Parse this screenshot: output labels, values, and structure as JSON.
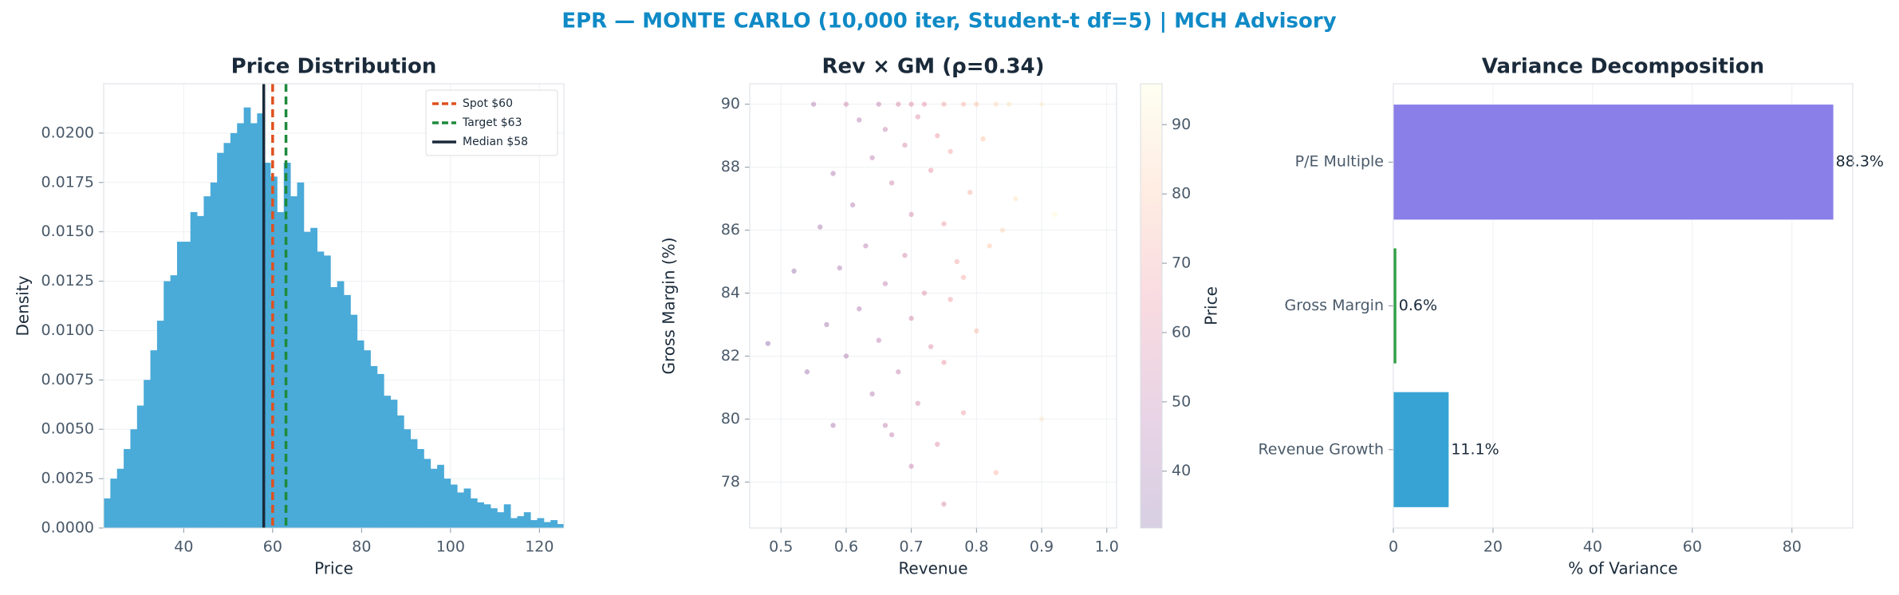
{
  "title": "EPR — MONTE CARLO (10,000 iter, Student-t df=5) | MCH Advisory",
  "chart_data": [
    {
      "type": "histogram",
      "title": "Price Distribution",
      "xlabel": "Price",
      "ylabel": "Density",
      "color": "#4aaad8",
      "bins": [
        22,
        23.5,
        25,
        26.5,
        28,
        29.5,
        31,
        32.5,
        34,
        35.5,
        37,
        38.5,
        40,
        41.5,
        43,
        44.5,
        46,
        47.5,
        49,
        50.5,
        52,
        53.5,
        55,
        56.5,
        58,
        59.5,
        61,
        62.5,
        64,
        65.5,
        67,
        68.5,
        70,
        71.5,
        73,
        74.5,
        76,
        77.5,
        79,
        80.5,
        82,
        83.5,
        85,
        86.5,
        88,
        89.5,
        91,
        92.5,
        94,
        95.5,
        97,
        98.5,
        100,
        101.5,
        103,
        104.5,
        106,
        107.5,
        109,
        110.5,
        112,
        113.5,
        115,
        116.5,
        118,
        119.5,
        121,
        122.5,
        124,
        125.5
      ],
      "values": [
        0.0015,
        0.0025,
        0.003,
        0.004,
        0.005,
        0.0062,
        0.0075,
        0.009,
        0.0105,
        0.0125,
        0.0128,
        0.0145,
        0.0145,
        0.016,
        0.0158,
        0.0168,
        0.0175,
        0.019,
        0.0195,
        0.02,
        0.0205,
        0.0213,
        0.0205,
        0.021,
        0.0185,
        0.0178,
        0.016,
        0.0185,
        0.0168,
        0.0175,
        0.015,
        0.0152,
        0.014,
        0.0138,
        0.0122,
        0.0125,
        0.0118,
        0.0108,
        0.0095,
        0.009,
        0.0082,
        0.0078,
        0.0067,
        0.0065,
        0.0057,
        0.005,
        0.0045,
        0.004,
        0.0035,
        0.003,
        0.0032,
        0.0025,
        0.0022,
        0.0018,
        0.002,
        0.0015,
        0.0013,
        0.0012,
        0.001,
        0.0008,
        0.0012,
        0.0005,
        0.0006,
        0.0008,
        0.0004,
        0.0005,
        0.0003,
        0.0004,
        0.0002
      ],
      "vlines": [
        {
          "value": 60,
          "label": "Spot $60",
          "color": "#e0501e",
          "dashed": true
        },
        {
          "value": 63,
          "label": "Target $63",
          "color": "#1e8a3c",
          "dashed": true
        },
        {
          "value": 58,
          "label": "Median $58",
          "color": "#1a2a3a",
          "dashed": false
        }
      ],
      "legend": "upper right",
      "xlim": [
        22,
        125.5
      ],
      "xticks": [
        40,
        60,
        80,
        100,
        120
      ],
      "ylim": [
        0,
        0.0225
      ],
      "yticks": [
        {
          "value": 0,
          "label": "0.0000"
        },
        {
          "value": 0.0025,
          "label": "0.0025"
        },
        {
          "value": 0.005,
          "label": "0.0050"
        },
        {
          "value": 0.0075,
          "label": "0.0075"
        },
        {
          "value": 0.01,
          "label": "0.0100"
        },
        {
          "value": 0.0125,
          "label": "0.0125"
        },
        {
          "value": 0.015,
          "label": "0.0150"
        },
        {
          "value": 0.0175,
          "label": "0.0175"
        },
        {
          "value": 0.02,
          "label": "0.0200"
        }
      ],
      "grid": true
    },
    {
      "type": "scatter",
      "title": "Rev × GM (ρ=0.34)",
      "xlabel": "Revenue",
      "ylabel": "Gross Margin (%)",
      "colorbar_label": "Price",
      "colormap": [
        "#3b0f70",
        "#8c2981",
        "#de4968",
        "#fe9f6d",
        "#fcfdbf"
      ],
      "opacity": 0.3,
      "x": [
        0.6,
        0.65,
        0.7,
        0.75,
        0.8,
        0.85,
        0.9,
        0.55,
        0.68,
        0.72,
        0.78,
        0.83,
        0.62,
        0.66,
        0.71,
        0.74,
        0.69,
        0.64,
        0.76,
        0.81,
        0.58,
        0.67,
        0.73,
        0.79,
        0.86,
        0.61,
        0.7,
        0.75,
        0.84,
        0.56,
        0.63,
        0.69,
        0.77,
        0.82,
        0.59,
        0.66,
        0.72,
        0.78,
        0.52,
        0.62,
        0.7,
        0.76,
        0.57,
        0.65,
        0.73,
        0.8,
        0.6,
        0.68,
        0.75,
        0.54,
        0.64,
        0.71,
        0.78,
        0.58,
        0.67,
        0.74,
        0.66,
        0.7,
        0.75,
        0.48,
        0.83,
        0.9,
        0.92
      ],
      "y": [
        90,
        90,
        90,
        90,
        90,
        90,
        90,
        90,
        90,
        90,
        90,
        90,
        89.5,
        89.2,
        89.6,
        89.0,
        88.7,
        88.3,
        88.5,
        88.9,
        87.8,
        87.5,
        87.9,
        87.2,
        87.0,
        86.8,
        86.5,
        86.2,
        86.0,
        86.1,
        85.5,
        85.2,
        85.0,
        85.5,
        84.8,
        84.3,
        84.0,
        84.5,
        84.7,
        83.5,
        83.2,
        83.8,
        83.0,
        82.5,
        82.3,
        82.8,
        82.0,
        81.5,
        81.8,
        81.5,
        80.8,
        80.5,
        80.2,
        79.8,
        79.5,
        79.2,
        79.8,
        78.5,
        77.3,
        82.4,
        78.3,
        80.0,
        86.5
      ],
      "c": [
        55,
        50,
        60,
        70,
        80,
        88,
        92,
        45,
        58,
        62,
        75,
        85,
        48,
        52,
        60,
        66,
        57,
        50,
        70,
        80,
        44,
        54,
        63,
        74,
        88,
        47,
        57,
        66,
        84,
        42,
        48,
        55,
        70,
        80,
        44,
        50,
        60,
        72,
        38,
        46,
        56,
        67,
        41,
        49,
        60,
        76,
        45,
        52,
        64,
        39,
        47,
        56,
        68,
        42,
        51,
        60,
        50,
        53,
        58,
        36,
        75,
        90,
        94
      ],
      "xlim": [
        0.452,
        1.015
      ],
      "xticks": [
        0.5,
        0.6,
        0.7,
        0.8,
        0.9,
        {
          "value": 1,
          "label": "1.0"
        }
      ],
      "ylim": [
        76.54,
        90.65
      ],
      "yticks": [
        78,
        80,
        82,
        84,
        86,
        88,
        90
      ],
      "clim": [
        31.8,
        95.9
      ],
      "cticks": [
        40,
        50,
        60,
        70,
        80,
        90
      ],
      "grid": true
    },
    {
      "type": "barh",
      "title": "Variance Decomposition",
      "xlabel": "% of Variance",
      "categories": [
        "Revenue Growth",
        "Gross Margin",
        "P/E Multiple"
      ],
      "values": [
        11.1,
        0.6,
        88.3
      ],
      "value_labels": [
        "11.1%",
        "0.6%",
        "88.3%"
      ],
      "colors": [
        "#36a3d4",
        "#2ea043",
        "#8a7fe8"
      ],
      "xlim": [
        0,
        92.2
      ],
      "xticks": [
        0,
        20,
        40,
        60,
        80
      ],
      "grid": true
    }
  ]
}
